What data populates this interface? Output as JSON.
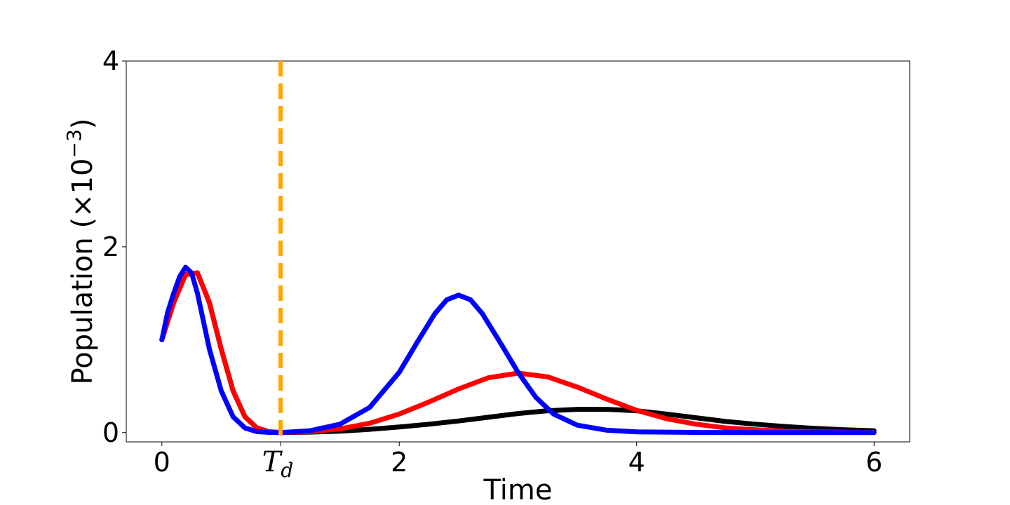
{
  "chart_data": {
    "type": "line",
    "xlabel": "Time",
    "ylabel": "Population (×10",
    "ylabel_exp": "−3",
    "ylabel_close": ")",
    "xlim": [
      -0.3,
      6.3
    ],
    "ylim": [
      -0.1,
      4
    ],
    "xticks": [
      {
        "value": 0,
        "label": "0"
      },
      {
        "value": 2,
        "label": "2"
      },
      {
        "value": 4,
        "label": "4"
      },
      {
        "value": 6,
        "label": "6"
      }
    ],
    "td_tick": {
      "value": 1,
      "label": "T",
      "sub": "d"
    },
    "yticks": [
      {
        "value": 0,
        "label": "0"
      },
      {
        "value": 2,
        "label": "2"
      },
      {
        "value": 4,
        "label": "4"
      }
    ],
    "vline": {
      "x": 1,
      "color": "#ffa500",
      "style": "dashed"
    },
    "series": [
      {
        "color": "#000000",
        "x": [
          0,
          0.1,
          0.2,
          0.3,
          0.4,
          0.5,
          0.6,
          0.7,
          0.8,
          0.9,
          1,
          1.25,
          1.5,
          1.75,
          2,
          2.25,
          2.5,
          2.75,
          3,
          3.25,
          3.5,
          3.75,
          4,
          4.25,
          4.5,
          4.75,
          5,
          5.25,
          5.5,
          5.75,
          6
        ],
        "y": [
          1,
          1.4,
          1.7,
          1.72,
          1.4,
          0.9,
          0.45,
          0.17,
          0.05,
          0.01,
          0,
          0.005,
          0.015,
          0.035,
          0.06,
          0.09,
          0.125,
          0.165,
          0.205,
          0.235,
          0.25,
          0.25,
          0.235,
          0.2,
          0.16,
          0.12,
          0.09,
          0.065,
          0.045,
          0.03,
          0.02
        ]
      },
      {
        "color": "#ff0000",
        "x": [
          0,
          0.1,
          0.2,
          0.3,
          0.4,
          0.5,
          0.6,
          0.7,
          0.8,
          0.9,
          1,
          1.25,
          1.5,
          1.75,
          2,
          2.25,
          2.5,
          2.75,
          3,
          3.25,
          3.5,
          3.75,
          4,
          4.25,
          4.5,
          4.75,
          5,
          5.25,
          5.5,
          5.75,
          6
        ],
        "y": [
          1,
          1.4,
          1.7,
          1.72,
          1.4,
          0.9,
          0.45,
          0.17,
          0.05,
          0.01,
          0,
          0.01,
          0.04,
          0.1,
          0.2,
          0.33,
          0.47,
          0.59,
          0.64,
          0.6,
          0.49,
          0.36,
          0.24,
          0.15,
          0.09,
          0.05,
          0.03,
          0.015,
          0.008,
          0.004,
          0.002
        ]
      },
      {
        "color": "#0000ff",
        "x": [
          0,
          0.05,
          0.1,
          0.15,
          0.2,
          0.25,
          0.3,
          0.35,
          0.4,
          0.5,
          0.6,
          0.7,
          0.8,
          0.9,
          1,
          1.25,
          1.5,
          1.75,
          2,
          2.15,
          2.3,
          2.4,
          2.5,
          2.6,
          2.7,
          2.85,
          3,
          3.15,
          3.3,
          3.5,
          3.75,
          4,
          4.5,
          5,
          5.5,
          6
        ],
        "y": [
          1,
          1.3,
          1.5,
          1.68,
          1.78,
          1.72,
          1.5,
          1.2,
          0.9,
          0.45,
          0.17,
          0.05,
          0.01,
          0.002,
          0,
          0.02,
          0.09,
          0.27,
          0.65,
          0.97,
          1.28,
          1.43,
          1.48,
          1.43,
          1.28,
          0.97,
          0.65,
          0.38,
          0.2,
          0.08,
          0.025,
          0.008,
          0.002,
          0,
          0,
          0
        ]
      }
    ]
  }
}
